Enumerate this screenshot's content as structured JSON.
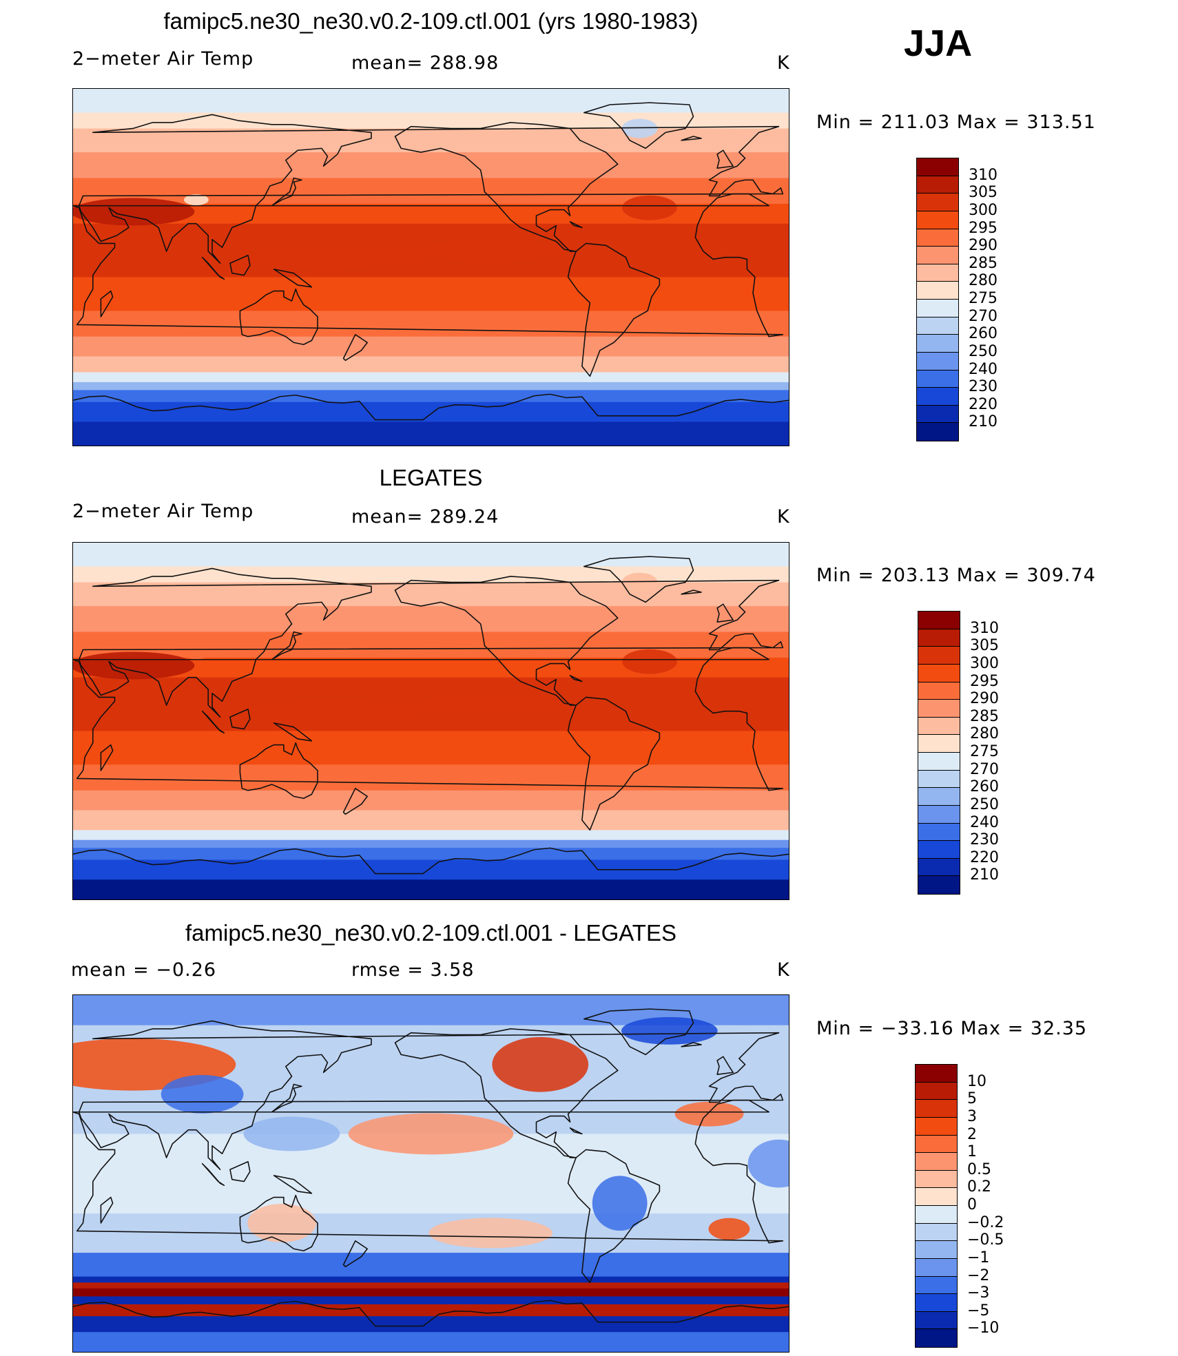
{
  "header": {
    "season": "JJA"
  },
  "panels": [
    {
      "id": "model",
      "title": "famipc5.ne30_ne30.v0.2-109.ctl.001 (yrs 1980-1983)",
      "left_label": "2−meter Air Temp",
      "center_label": "mean=  288.98",
      "units": "K",
      "minmax": "Min  =  211.03  Max  =  313.51",
      "field": "model"
    },
    {
      "id": "obs",
      "title": "LEGATES",
      "left_label": "2−meter Air Temp",
      "center_label": "mean=  289.24",
      "units": "K",
      "minmax": "Min  =  203.13  Max  =  309.74",
      "field": "obs"
    },
    {
      "id": "diff",
      "title": "famipc5.ne30_ne30.v0.2-109.ctl.001 - LEGATES",
      "left_label": "mean  =    −0.26",
      "center_label": "rmse  =     3.58",
      "units": "K",
      "minmax": "Min  =  −33.16  Max  =    32.35",
      "field": "diff"
    }
  ],
  "colorbars": {
    "temperature": {
      "labels": [
        "310",
        "305",
        "300",
        "295",
        "290",
        "285",
        "280",
        "275",
        "270",
        "260",
        "250",
        "240",
        "230",
        "220",
        "210"
      ],
      "colors": [
        "#8b0000",
        "#b81c05",
        "#d9330a",
        "#f24c11",
        "#fa6d3a",
        "#fc9470",
        "#fdbc9f",
        "#fee2cd",
        "#ddebf7",
        "#bcd3f2",
        "#93b6f0",
        "#6a94ee",
        "#3b6fe8",
        "#1848d8",
        "#0a2bb0",
        "#001586"
      ]
    },
    "difference": {
      "labels": [
        "10",
        "5",
        "3",
        "2",
        "1",
        "0.5",
        "0.2",
        "0",
        "−0.2",
        "−0.5",
        "−1",
        "−2",
        "−3",
        "−5",
        "−10"
      ],
      "colors": [
        "#8b0000",
        "#b81c05",
        "#d9330a",
        "#f24c11",
        "#fa6d3a",
        "#fc9470",
        "#fdbc9f",
        "#fee2cd",
        "#ddebf7",
        "#bcd3f2",
        "#93b6f0",
        "#6a94ee",
        "#3b6fe8",
        "#1848d8",
        "#0a2bb0",
        "#001586"
      ]
    }
  }
}
